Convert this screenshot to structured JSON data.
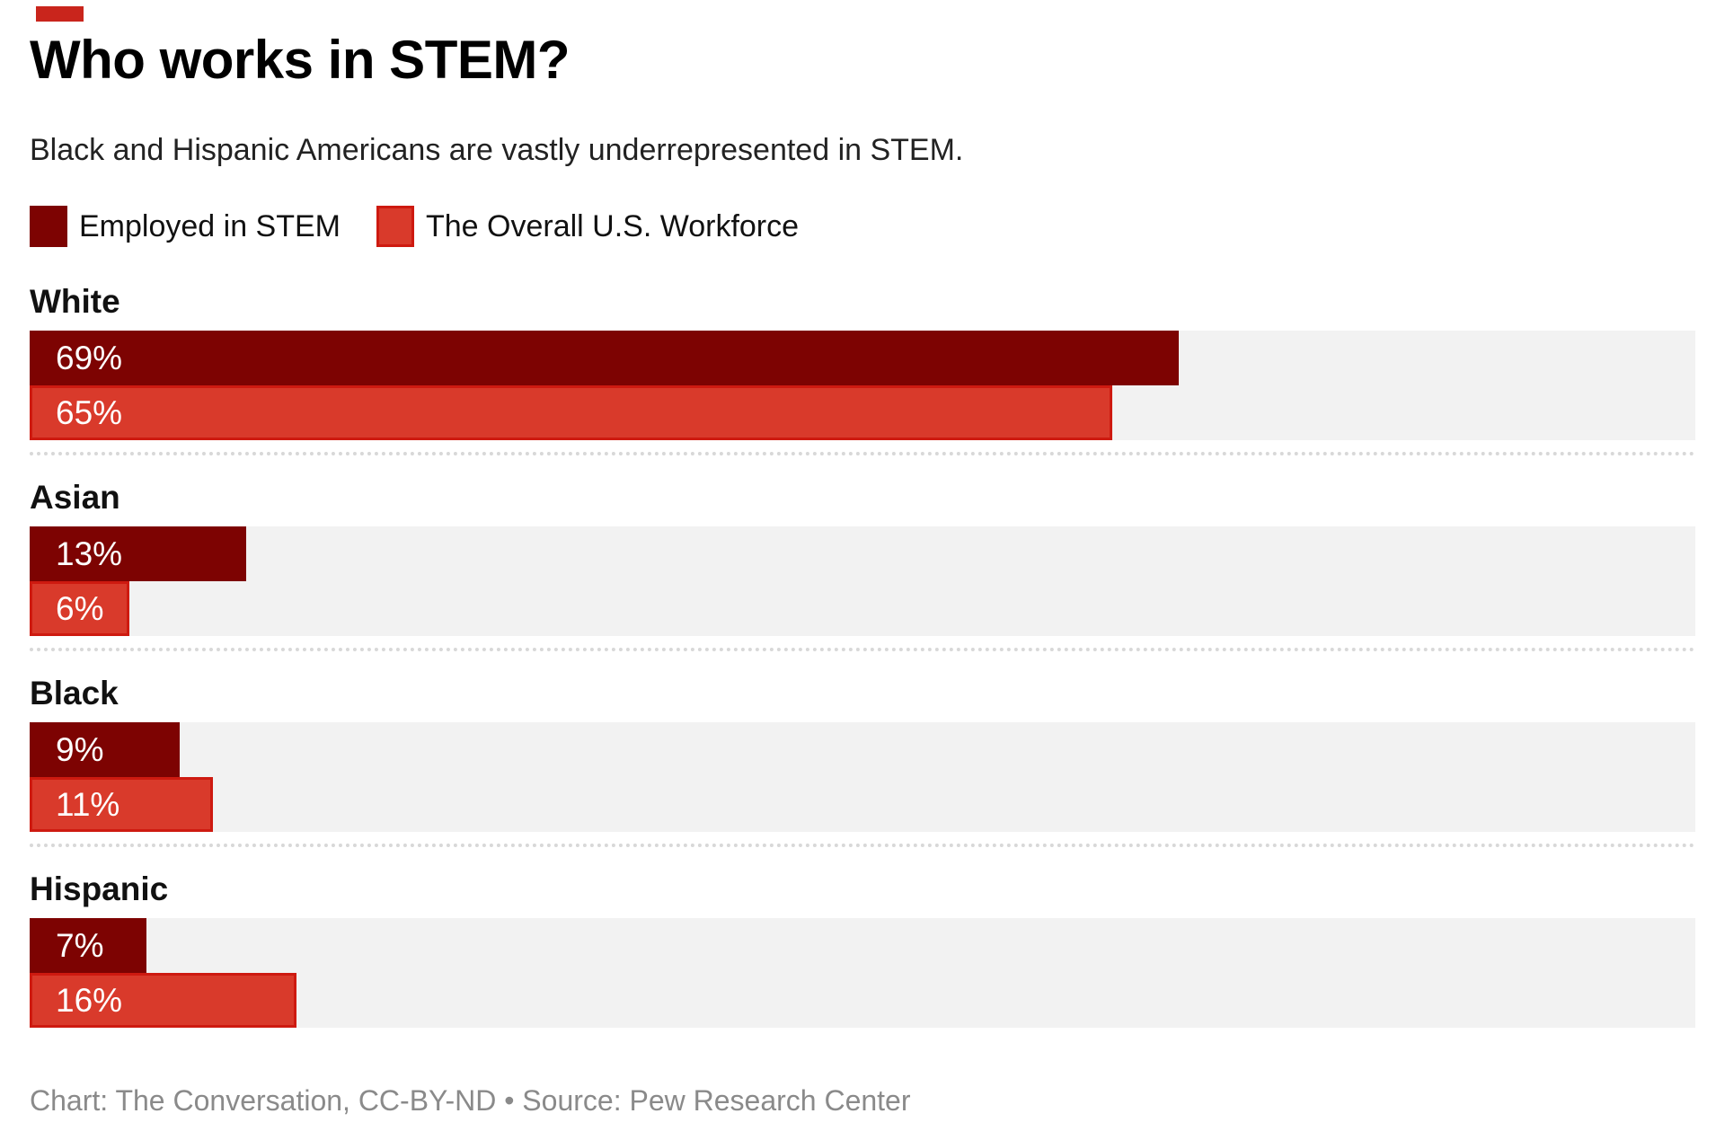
{
  "colors": {
    "stem_dark_red": "#7D0302",
    "workforce_red": "#D93A2B",
    "workforce_red_border": "#CE1A10",
    "bar_track_gray": "#F2F2F2",
    "separator_gray": "#D8D8D8",
    "corner_mark_red": "#C9251C",
    "footer_gray": "#8A8A8A"
  },
  "footer": {
    "text": "Chart: The Conversation, CC-BY-ND • Source: Pew Research Center"
  },
  "chart_data": {
    "type": "bar",
    "orientation": "horizontal",
    "title": "Who works in STEM?",
    "subtitle": "Black and Hispanic Americans are vastly underrepresented in STEM.",
    "categories": [
      "White",
      "Asian",
      "Black",
      "Hispanic"
    ],
    "series": [
      {
        "name": "Employed in STEM",
        "color": "#7D0302",
        "values": [
          69,
          13,
          9,
          7
        ]
      },
      {
        "name": "The Overall U.S. Workforce",
        "color": "#D93A2B",
        "values": [
          65,
          6,
          11,
          16
        ]
      }
    ],
    "value_unit": "%",
    "value_labels": "inside-left",
    "xlim": [
      0,
      100
    ],
    "legend_position": "top-left",
    "grid": false
  }
}
